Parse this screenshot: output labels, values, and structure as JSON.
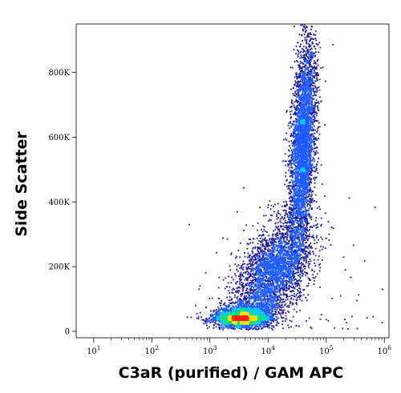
{
  "chart_data": {
    "type": "scatter",
    "xlabel": "C3aR (purified) / GAM APC",
    "ylabel": "Side Scatter",
    "x_scale": "log",
    "xlim": [
      5,
      1200000
    ],
    "ylim": [
      -20000,
      950000
    ],
    "x_ticks": [
      {
        "value": 10,
        "base": "10",
        "exp": "1"
      },
      {
        "value": 100,
        "base": "10",
        "exp": "2"
      },
      {
        "value": 1000,
        "base": "10",
        "exp": "3"
      },
      {
        "value": 10000,
        "base": "10",
        "exp": "4"
      },
      {
        "value": 100000,
        "base": "10",
        "exp": "5"
      },
      {
        "value": 1000000,
        "base": "10",
        "exp": "6"
      }
    ],
    "y_ticks": [
      {
        "value": 0,
        "label": "0"
      },
      {
        "value": 200000,
        "label": "200K"
      },
      {
        "value": 400000,
        "label": "400K"
      },
      {
        "value": 600000,
        "label": "600K"
      },
      {
        "value": 800000,
        "label": "800K"
      }
    ],
    "grid": false,
    "colormap": [
      "#1a1aa8",
      "#1f5cff",
      "#00c8ff",
      "#18e07a",
      "#ffe000",
      "#ff2000"
    ],
    "populations": [
      {
        "x_center": 3500,
        "y_center": 40000,
        "x_spread_log": 0.22,
        "y_spread": 22000,
        "relative_density": 1.0
      },
      {
        "x_center": 12000,
        "y_center": 190000,
        "x_spread_log": 0.3,
        "y_spread": 70000,
        "relative_density": 0.35
      },
      {
        "x_center": 40000,
        "y_center": 580000,
        "x_spread_log": 0.1,
        "y_spread": 160000,
        "relative_density": 0.6
      }
    ]
  }
}
